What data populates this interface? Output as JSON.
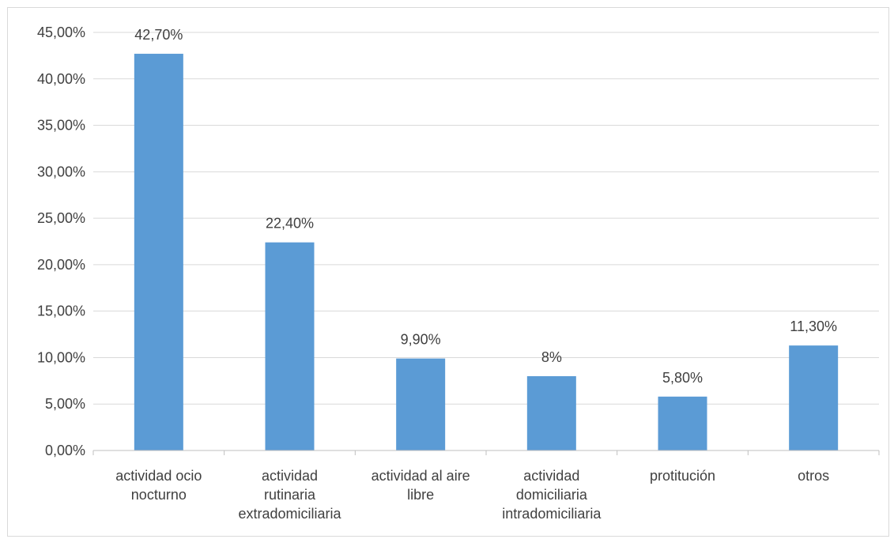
{
  "chart_data": {
    "type": "bar",
    "title": "",
    "xlabel": "",
    "ylabel": "",
    "categories": [
      [
        "actividad ocio",
        "nocturno"
      ],
      [
        "actividad",
        "rutinaria",
        "extradomiciliaria"
      ],
      [
        "actividad al aire",
        "libre"
      ],
      [
        "actividad",
        "domiciliaria",
        "intradomiciliaria"
      ],
      [
        "protitución"
      ],
      [
        "otros"
      ]
    ],
    "values": [
      42.7,
      22.4,
      9.9,
      8,
      5.8,
      11.3
    ],
    "data_labels": [
      "42,70%",
      "22,40%",
      "9,90%",
      "8%",
      "5,80%",
      "11,30%"
    ],
    "ylim": [
      0,
      45
    ],
    "yticks": [
      0,
      5,
      10,
      15,
      20,
      25,
      30,
      35,
      40,
      45
    ],
    "ytick_labels": [
      "0,00%",
      "5,00%",
      "10,00%",
      "15,00%",
      "20,00%",
      "25,00%",
      "30,00%",
      "35,00%",
      "40,00%",
      "45,00%"
    ],
    "grid": true,
    "legend": "none",
    "colors": {
      "bar": "#5b9bd5",
      "grid": "#d9d9d9",
      "axis": "#bfbfbf",
      "text": "#404040"
    }
  }
}
